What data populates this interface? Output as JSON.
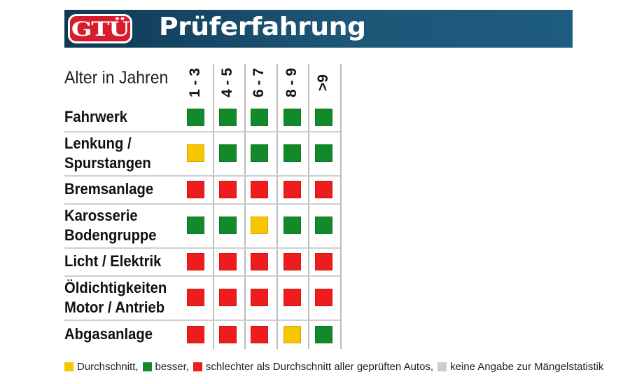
{
  "header": {
    "logo_text": "GTÜ",
    "title": "Prüferfahrung"
  },
  "axis_label": "Alter in Jahren",
  "colors": {
    "yellow": "#f7c600",
    "green": "#138a2a",
    "red": "#ee1c1c",
    "grey": "#cccccc"
  },
  "columns": [
    "1 - 3",
    "4 - 5",
    "6 - 7",
    "8 - 9",
    ">9"
  ],
  "rows": [
    {
      "lines": [
        "Fahrwerk"
      ],
      "ratings": [
        "green",
        "green",
        "green",
        "green",
        "green"
      ]
    },
    {
      "lines": [
        "Lenkung /",
        "Spurstangen"
      ],
      "ratings": [
        "yellow",
        "green",
        "green",
        "green",
        "green"
      ]
    },
    {
      "lines": [
        "Bremsanlage"
      ],
      "ratings": [
        "red",
        "red",
        "red",
        "red",
        "red"
      ]
    },
    {
      "lines": [
        "Karosserie",
        "Bodengruppe"
      ],
      "ratings": [
        "green",
        "green",
        "yellow",
        "green",
        "green"
      ]
    },
    {
      "lines": [
        "Licht / Elektrik"
      ],
      "ratings": [
        "red",
        "red",
        "red",
        "red",
        "red"
      ]
    },
    {
      "lines": [
        "Öldichtigkeiten",
        "Motor / Antrieb"
      ],
      "ratings": [
        "red",
        "red",
        "red",
        "red",
        "red"
      ]
    },
    {
      "lines": [
        "Abgasanlage"
      ],
      "ratings": [
        "red",
        "red",
        "red",
        "yellow",
        "green"
      ]
    }
  ],
  "legend": [
    {
      "color": "yellow",
      "label": "Durchschnitt,"
    },
    {
      "color": "green",
      "label": "besser,"
    },
    {
      "color": "red",
      "label": "schlechter als Durchschnitt aller geprüften Autos,"
    },
    {
      "color": "grey",
      "label": "keine Angabe zur Mängelstatistik"
    }
  ]
}
